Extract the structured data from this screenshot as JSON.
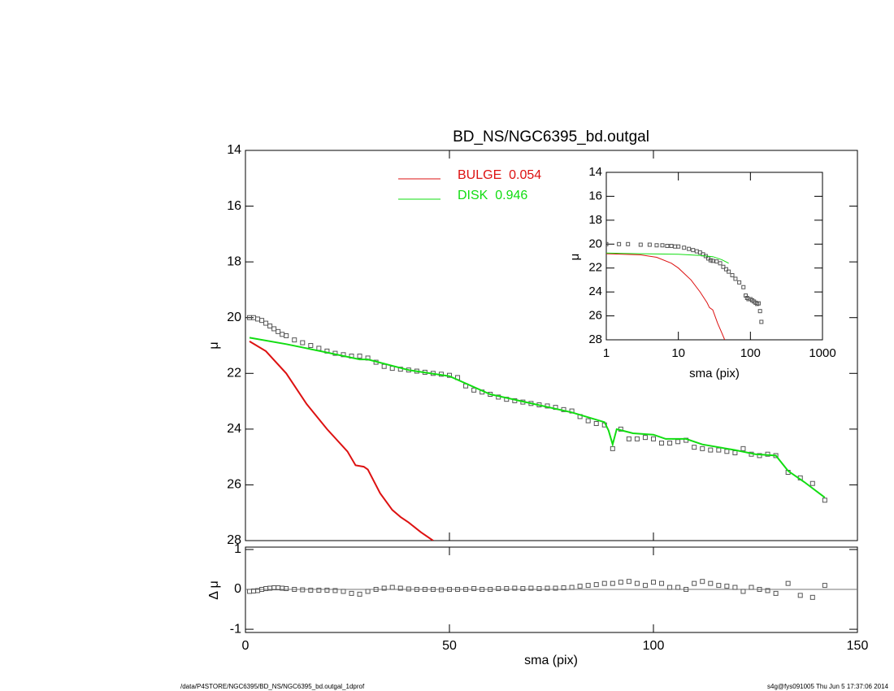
{
  "chart_data": [
    {
      "type": "line",
      "title": "BD_NS/NGC6395_bd.outgal",
      "y_label": "μ",
      "x_label": "sma (pix)",
      "xlim": [
        0,
        150
      ],
      "xticks": [
        0,
        50,
        100,
        150
      ],
      "ylim": [
        14,
        28
      ],
      "yticks": [
        14,
        16,
        18,
        20,
        22,
        24,
        26,
        28
      ],
      "y_reversed": true,
      "series": [
        {
          "marker": "square",
          "color": "#555555",
          "x": [
            1,
            2,
            3,
            4,
            5,
            6,
            7,
            8,
            9,
            10,
            12,
            14,
            16,
            18,
            20,
            22,
            24,
            26,
            28,
            30,
            32,
            34,
            36,
            38,
            40,
            42,
            44,
            46,
            48,
            50,
            52,
            54,
            56,
            58,
            60,
            62,
            64,
            66,
            68,
            70,
            72,
            74,
            76,
            78,
            80,
            82,
            84,
            86,
            88,
            90,
            92,
            94,
            96,
            98,
            100,
            102,
            104,
            106,
            108,
            110,
            112,
            114,
            116,
            118,
            120,
            122,
            124,
            126,
            128,
            130,
            133,
            136,
            139,
            142
          ],
          "values": [
            20.0,
            20.0,
            20.05,
            20.1,
            20.2,
            20.3,
            20.4,
            20.5,
            20.6,
            20.65,
            20.8,
            20.9,
            21.0,
            21.1,
            21.2,
            21.28,
            21.33,
            21.38,
            21.38,
            21.45,
            21.6,
            21.75,
            21.82,
            21.85,
            21.88,
            21.92,
            21.96,
            22.0,
            22.03,
            22.07,
            22.15,
            22.45,
            22.6,
            22.67,
            22.75,
            22.85,
            22.93,
            22.98,
            23.03,
            23.08,
            23.13,
            23.17,
            23.22,
            23.3,
            23.35,
            23.55,
            23.7,
            23.8,
            23.85,
            24.7,
            24.0,
            24.35,
            24.35,
            24.3,
            24.35,
            24.5,
            24.5,
            24.45,
            24.4,
            24.65,
            24.7,
            24.75,
            24.75,
            24.8,
            24.85,
            24.7,
            24.9,
            24.95,
            24.9,
            24.95,
            25.55,
            25.75,
            25.95,
            26.55
          ]
        },
        {
          "name": "BULGE  0.054",
          "color": "#dd1111",
          "x": [
            1,
            5,
            10,
            15,
            20,
            25,
            27,
            29,
            30,
            33,
            36,
            38,
            40,
            43,
            46
          ],
          "values": [
            20.85,
            21.2,
            22.0,
            23.1,
            24.0,
            24.8,
            25.3,
            25.35,
            25.45,
            26.3,
            26.9,
            27.15,
            27.35,
            27.7,
            28.0
          ]
        },
        {
          "name": "DISK  0.946",
          "color": "#11dd11",
          "x": [
            1,
            10,
            20,
            28,
            30,
            40,
            50,
            60,
            80,
            88,
            89,
            90,
            91,
            95,
            100,
            103,
            108,
            112,
            120,
            125,
            130,
            133,
            137,
            142
          ],
          "values": [
            20.72,
            20.95,
            21.25,
            21.5,
            21.5,
            21.88,
            22.1,
            22.75,
            23.4,
            23.75,
            24.05,
            24.55,
            24.0,
            24.15,
            24.2,
            24.35,
            24.35,
            24.55,
            24.75,
            24.9,
            24.95,
            25.5,
            25.9,
            26.45
          ]
        }
      ],
      "footer_left": "/data/P4STORE/NGC6395/BD_NS/NGC6395_bd.outgal_1dprof",
      "footer_right": "s4g@fys091005  Thu Jun  5 17:37:06 2014"
    },
    {
      "type": "scatter",
      "y_label": "Δ μ",
      "ylim": [
        -1.08,
        1.06
      ],
      "yticks": [
        -1,
        0,
        1
      ],
      "series": [
        {
          "marker": "square",
          "color": "#555555",
          "x": [
            1,
            2,
            3,
            4,
            5,
            6,
            7,
            8,
            9,
            10,
            12,
            14,
            16,
            18,
            20,
            22,
            24,
            26,
            28,
            30,
            32,
            34,
            36,
            38,
            40,
            42,
            44,
            46,
            48,
            50,
            52,
            54,
            56,
            58,
            60,
            62,
            64,
            66,
            68,
            70,
            72,
            74,
            76,
            78,
            80,
            82,
            84,
            86,
            88,
            90,
            92,
            94,
            96,
            98,
            100,
            102,
            104,
            106,
            108,
            110,
            112,
            114,
            116,
            118,
            120,
            122,
            124,
            126,
            128,
            130,
            133,
            136,
            139,
            142
          ],
          "values": [
            -0.05,
            -0.04,
            -0.03,
            0.0,
            0.02,
            0.03,
            0.04,
            0.04,
            0.03,
            0.02,
            0.0,
            -0.01,
            -0.02,
            -0.02,
            -0.02,
            -0.03,
            -0.05,
            -0.1,
            -0.12,
            -0.05,
            0.0,
            0.03,
            0.05,
            0.03,
            0.01,
            0.0,
            0.0,
            0.0,
            -0.01,
            0.0,
            0.0,
            0.0,
            0.02,
            0.0,
            0.0,
            0.02,
            0.02,
            0.03,
            0.02,
            0.03,
            0.02,
            0.03,
            0.03,
            0.04,
            0.05,
            0.08,
            0.1,
            0.12,
            0.15,
            0.15,
            0.18,
            0.2,
            0.15,
            0.1,
            0.18,
            0.15,
            0.05,
            0.05,
            0.0,
            0.15,
            0.2,
            0.15,
            0.1,
            0.08,
            0.05,
            -0.05,
            0.05,
            0.0,
            -0.03,
            -0.1,
            0.15,
            -0.15,
            -0.2,
            0.1
          ]
        }
      ]
    },
    {
      "type": "line",
      "y_label": "μ",
      "x_label": "sma (pix)",
      "x_log": true,
      "xlim": [
        1,
        1000
      ],
      "xticks": [
        1,
        10,
        100,
        1000
      ],
      "ylim": [
        14,
        28
      ],
      "yticks": [
        14,
        16,
        18,
        20,
        22,
        24,
        26,
        28
      ],
      "y_reversed": true,
      "series": [
        {
          "marker": "square",
          "color": "#555555",
          "x": [
            1,
            1.5,
            2,
            3,
            4,
            5,
            6,
            7,
            8,
            9,
            10,
            12,
            14,
            16,
            18,
            20,
            22,
            24,
            26,
            28,
            30,
            34,
            38,
            42,
            46,
            50,
            56,
            62,
            70,
            80,
            86,
            90,
            94,
            100,
            106,
            112,
            118,
            124,
            130,
            136,
            142
          ],
          "values": [
            20.0,
            20.0,
            20.0,
            20.05,
            20.05,
            20.1,
            20.1,
            20.15,
            20.15,
            20.2,
            20.2,
            20.3,
            20.4,
            20.5,
            20.6,
            20.7,
            20.85,
            21.0,
            21.2,
            21.35,
            21.4,
            21.45,
            21.6,
            21.9,
            22.1,
            22.3,
            22.6,
            22.9,
            23.2,
            23.6,
            24.3,
            24.5,
            24.6,
            24.6,
            24.7,
            24.8,
            24.9,
            25.0,
            24.95,
            25.6,
            26.5
          ]
        },
        {
          "color": "#dd1111",
          "x": [
            1,
            3,
            5,
            8,
            10,
            15,
            20,
            25,
            27,
            30,
            35,
            40,
            44
          ],
          "values": [
            20.8,
            20.9,
            21.1,
            21.6,
            22.0,
            23.0,
            24.0,
            24.9,
            25.3,
            25.5,
            26.6,
            27.4,
            28.0
          ]
        },
        {
          "color": "#11dd11",
          "x": [
            1,
            3,
            10,
            20,
            30,
            40,
            50
          ],
          "values": [
            20.75,
            20.8,
            20.85,
            20.95,
            21.05,
            21.3,
            21.6
          ]
        }
      ]
    }
  ]
}
